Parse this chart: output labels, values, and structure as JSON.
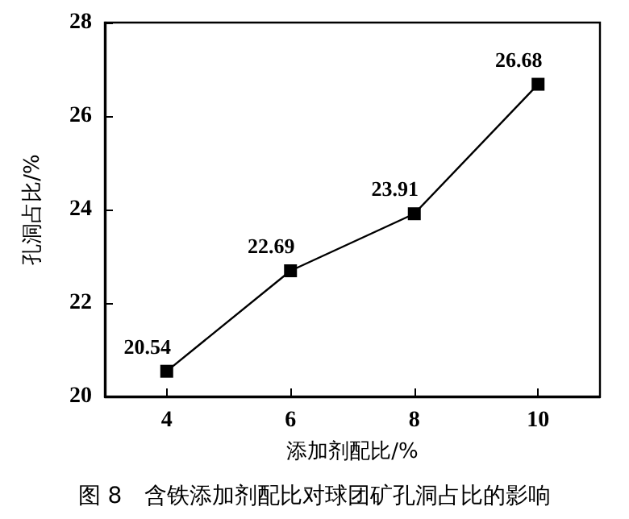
{
  "chart_data": {
    "type": "line",
    "title": "图 8　含铁添加剂配比对球团矿孔洞占比的影响",
    "xlabel": "添加剂配比/%",
    "ylabel": "孔洞占比/%",
    "x": [
      4,
      6,
      8,
      10
    ],
    "series": [
      {
        "color": "#000000",
        "values": [
          20.54,
          22.69,
          23.91,
          26.68
        ]
      }
    ],
    "xlim": [
      3,
      11
    ],
    "xticks": [
      4,
      6,
      8,
      10
    ],
    "ylim": [
      20,
      28
    ],
    "yticks": [
      20,
      22,
      24,
      26,
      28
    ],
    "data_labels": true,
    "marker": "square",
    "line_style": "solid"
  }
}
